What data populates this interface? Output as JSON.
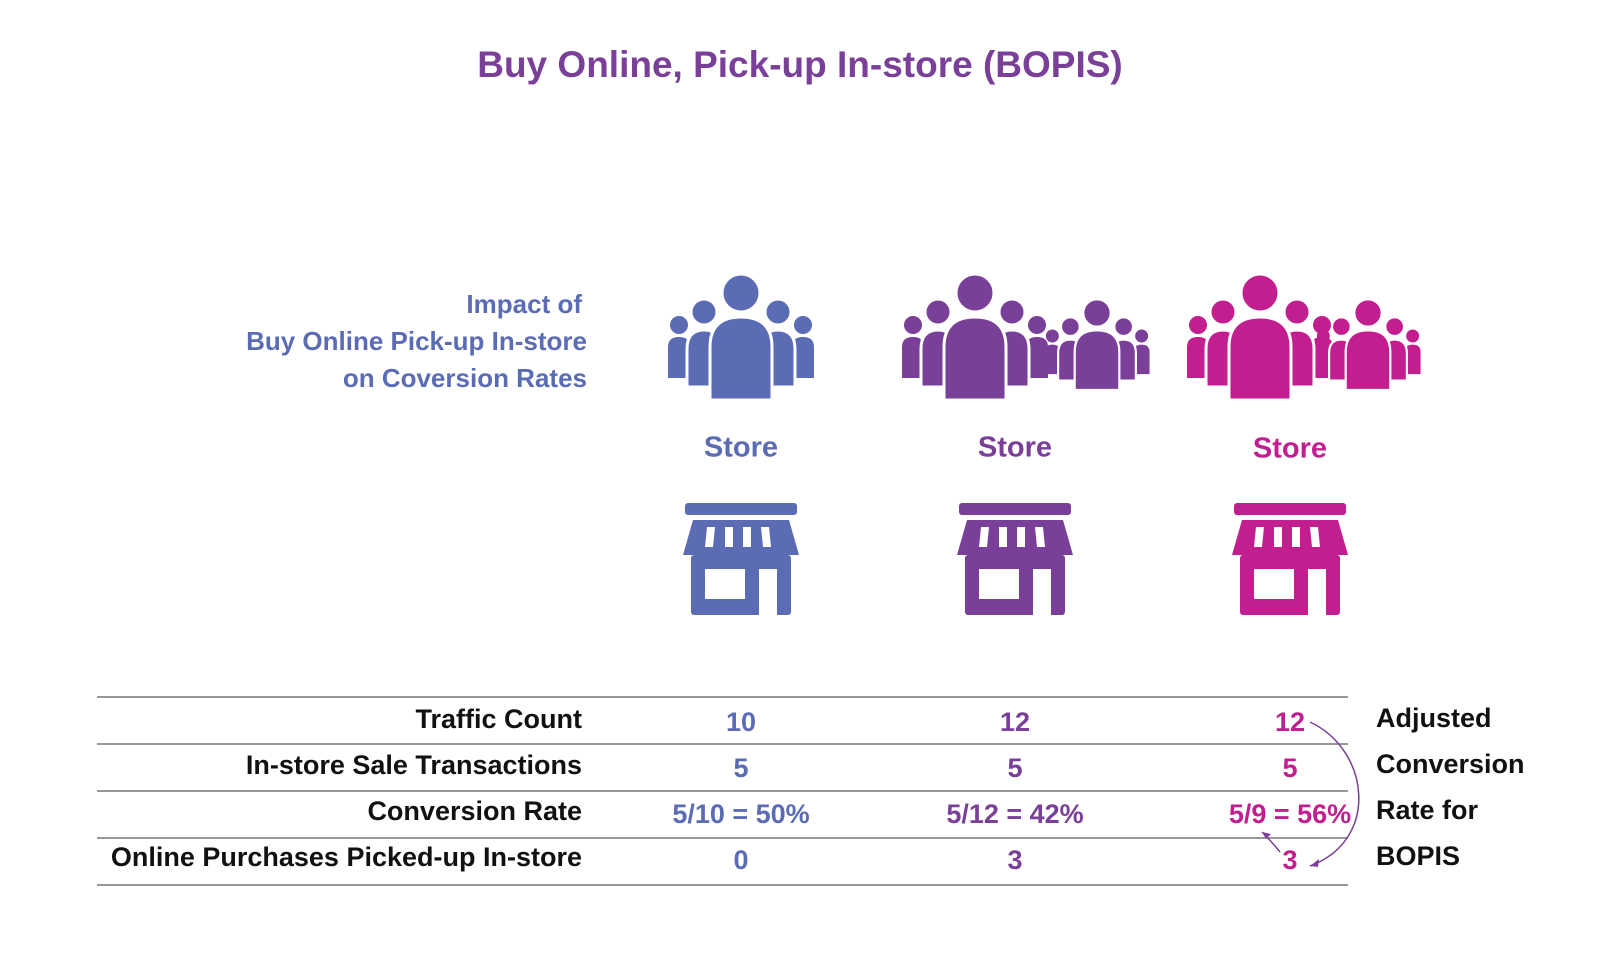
{
  "header": {
    "title": "Buy Online, Pick-up In-store (BOPIS)"
  },
  "subtitle": {
    "lines": [
      "Impact of",
      "Buy Online Pick-up In-store",
      "on Coversion Rates"
    ]
  },
  "stores": [
    {
      "label": "Store"
    },
    {
      "label": "Store"
    },
    {
      "label": "Store"
    }
  ],
  "table": {
    "row_labels": [
      "Traffic Count",
      "In-store Sale Transactions",
      "Conversion Rate",
      "Online Purchases Picked-up In-store"
    ],
    "columns": [
      [
        "10",
        "5",
        "5/10 = 50%",
        "0"
      ],
      [
        "12",
        "5",
        "5/12 = 42%",
        "3"
      ],
      [
        "12",
        "5",
        "5/9 = 56%",
        "3"
      ]
    ]
  },
  "note": {
    "lines": [
      "Adjusted",
      "Conversion",
      "Rate for",
      "BOPIS"
    ]
  }
}
